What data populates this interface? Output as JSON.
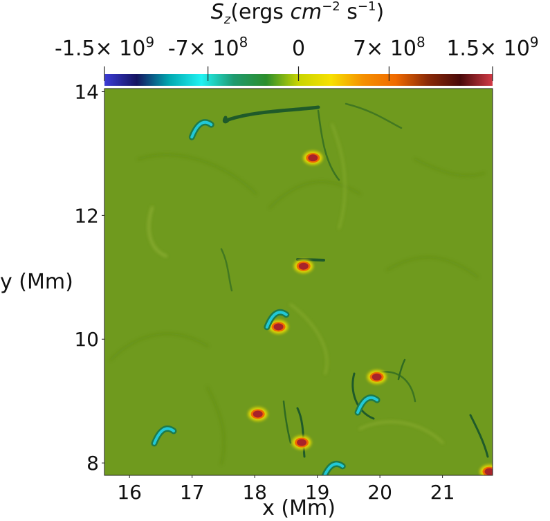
{
  "chart_data": {
    "type": "heatmap",
    "title": "",
    "colorbar": {
      "title_var": "S",
      "title_sub": "z",
      "title_units_a": "(ergs ",
      "title_units_cm": "cm",
      "title_units_exp1": "−2",
      "title_units_s": " s",
      "title_units_exp2": "−1",
      "title_units_close": ")",
      "range": [
        -1500000000,
        1500000000
      ],
      "ticks": [
        -1500000000,
        -700000000,
        0,
        700000000,
        1500000000
      ],
      "tick_labels": [
        {
          "mant": "-1.5× 10",
          "exp": "9"
        },
        {
          "mant": "-7× 10",
          "exp": "8"
        },
        {
          "mant": "0",
          "exp": ""
        },
        {
          "mant": "7× 10",
          "exp": "8"
        },
        {
          "mant": "1.5× 10",
          "exp": "9"
        }
      ],
      "colormap": [
        "#3b3bd6",
        "#141460",
        "#00a8b0",
        "#21f2f2",
        "#1f9a6f",
        "#2c8e2c",
        "#c8d400",
        "#f7e000",
        "#f59000",
        "#f06a00",
        "#8a2a08",
        "#4a0a0a",
        "#d23a46"
      ]
    },
    "xlabel": "x (Mm)",
    "ylabel": "y (Mm)",
    "xlim": [
      15.6,
      21.8
    ],
    "ylim": [
      7.8,
      14.05
    ],
    "x_ticks": [
      16,
      17,
      18,
      19,
      20,
      21
    ],
    "y_ticks": [
      8,
      10,
      12,
      14
    ],
    "background_color": "#6f9a1e",
    "features": [
      {
        "kind": "positive",
        "x": 18.78,
        "y": 11.18
      },
      {
        "kind": "positive",
        "x": 18.38,
        "y": 10.2
      },
      {
        "kind": "positive",
        "x": 19.95,
        "y": 9.39
      },
      {
        "kind": "positive",
        "x": 18.75,
        "y": 8.33
      },
      {
        "kind": "positive",
        "x": 18.05,
        "y": 8.79
      },
      {
        "kind": "positive",
        "x": 18.93,
        "y": 12.93
      },
      {
        "kind": "positive",
        "x": 21.75,
        "y": 7.86
      },
      {
        "kind": "negative",
        "x": 18.35,
        "y": 10.33
      },
      {
        "kind": "negative",
        "x": 19.8,
        "y": 8.95
      },
      {
        "kind": "negative",
        "x": 17.15,
        "y": 13.4
      },
      {
        "kind": "negative",
        "x": 16.55,
        "y": 8.45
      },
      {
        "kind": "negative",
        "x": 19.25,
        "y": 7.88
      }
    ]
  }
}
